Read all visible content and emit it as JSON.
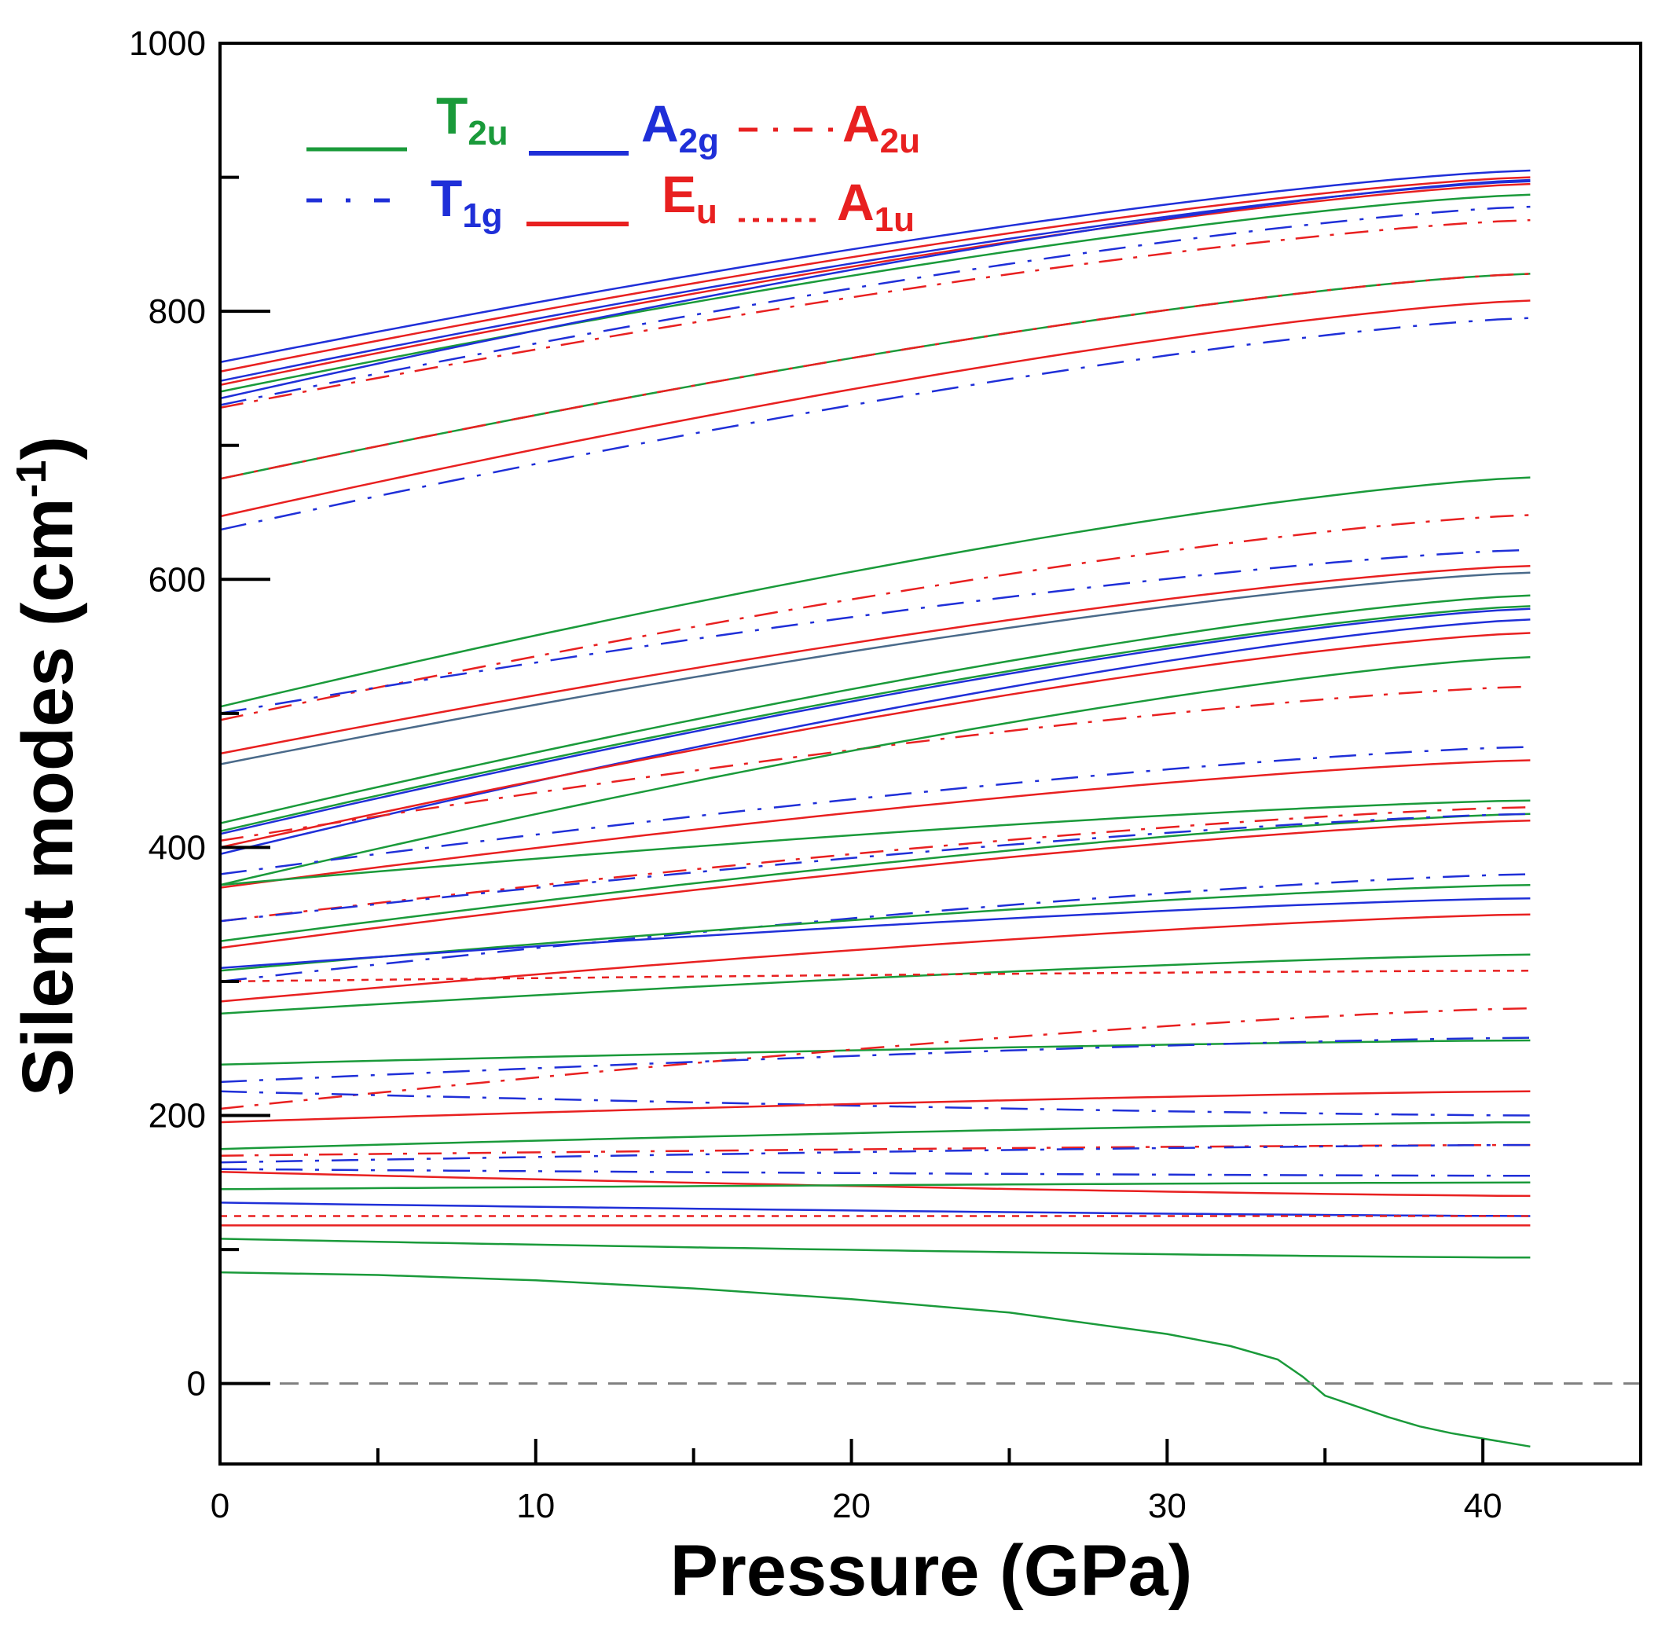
{
  "chart_data": {
    "type": "line",
    "title": "",
    "xlabel": "Pressure (GPa)",
    "ylabel_main": "Silent modes (cm",
    "ylabel_sup": "-1",
    "ylabel_end": ")",
    "xlim": [
      0,
      45
    ],
    "ylim": [
      -60,
      1000
    ],
    "x_ticks": [
      {
        "value": 0,
        "label": "0"
      },
      {
        "value": 10,
        "label": "10"
      },
      {
        "value": 20,
        "label": "20"
      },
      {
        "value": 30,
        "label": "30"
      },
      {
        "value": 40,
        "label": "40"
      }
    ],
    "y_ticks": [
      {
        "value": 0,
        "label": "0"
      },
      {
        "value": 200,
        "label": "200"
      },
      {
        "value": 400,
        "label": "400"
      },
      {
        "value": 600,
        "label": "600"
      },
      {
        "value": 800,
        "label": "800"
      },
      {
        "value": 1000,
        "label": "1000"
      }
    ],
    "zero_line": {
      "y": 0,
      "style": "dashed",
      "color": "#808080"
    },
    "x_range": [
      0,
      41.5
    ],
    "legend": [
      {
        "mode": "T2u",
        "main": "T",
        "sub": "2u",
        "color": "#1a9a3a",
        "style": "solid"
      },
      {
        "mode": "A2g",
        "main": "A",
        "sub": "2g",
        "color": "#1f2fd8",
        "style": "solid"
      },
      {
        "mode": "A2u",
        "main": "A",
        "sub": "2u",
        "color": "#e82020",
        "style": "dashdot"
      },
      {
        "mode": "T1g",
        "main": "T",
        "sub": "1g",
        "color": "#1f2fd8",
        "style": "dashdot"
      },
      {
        "mode": "Eu",
        "main": "E",
        "sub": "u",
        "color": "#e82020",
        "style": "solid"
      },
      {
        "mode": "A1u",
        "main": "A",
        "sub": "1u",
        "color": "#e82020",
        "style": "dotted"
      }
    ],
    "styles": {
      "T2u": {
        "color": "#1a9a3a",
        "dash": "none",
        "width": 2.5
      },
      "A2g": {
        "color": "#1f2fd8",
        "dash": "none",
        "width": 2.5
      },
      "A2u": {
        "color": "#e82020",
        "dash": "30 14 5 14",
        "width": 2.5
      },
      "T1g": {
        "color": "#1f2fd8",
        "dash": "34 16 5 16",
        "width": 2.5
      },
      "Eu": {
        "color": "#e82020",
        "dash": "none",
        "width": 2.5
      },
      "A1u": {
        "color": "#e82020",
        "dash": "9 9",
        "width": 2.5
      },
      "Mix": {
        "color": "#4a6a8a",
        "dash": "none",
        "width": 2.5
      }
    },
    "series": [
      {
        "mode": "A2g",
        "start": 762,
        "end": 905
      },
      {
        "mode": "Eu",
        "start": 755,
        "end": 900
      },
      {
        "mode": "A2g",
        "start": 748,
        "end": 897
      },
      {
        "mode": "Eu",
        "start": 745,
        "end": 895
      },
      {
        "mode": "T2u",
        "start": 740,
        "end": 887
      },
      {
        "mode": "A2g",
        "start": 735,
        "end": 898
      },
      {
        "mode": "A2u",
        "start": 728,
        "end": 868
      },
      {
        "mode": "T1g",
        "start": 730,
        "end": 878
      },
      {
        "mode": "T2u",
        "start": 675,
        "end": 828
      },
      {
        "mode": "A2u",
        "start": 675,
        "end": 828
      },
      {
        "mode": "Eu",
        "start": 647,
        "end": 808
      },
      {
        "mode": "T1g",
        "start": 637,
        "end": 795
      },
      {
        "mode": "T2u",
        "start": 505,
        "end": 676
      },
      {
        "mode": "A2u",
        "start": 495,
        "end": 648
      },
      {
        "mode": "T1g",
        "start": 500,
        "end": 622
      },
      {
        "mode": "Eu",
        "start": 470,
        "end": 610
      },
      {
        "mode": "Mix",
        "start": 462,
        "end": 605
      },
      {
        "mode": "T2u",
        "start": 418,
        "end": 588
      },
      {
        "mode": "T2u",
        "start": 412,
        "end": 580
      },
      {
        "mode": "A2g",
        "start": 410,
        "end": 578
      },
      {
        "mode": "A2g",
        "start": 395,
        "end": 570
      },
      {
        "mode": "Eu",
        "start": 400,
        "end": 560
      },
      {
        "mode": "A2u",
        "start": 405,
        "end": 520
      },
      {
        "mode": "T2u",
        "start": 372,
        "end": 542
      },
      {
        "mode": "T1g",
        "start": 380,
        "end": 475
      },
      {
        "mode": "Eu",
        "start": 370,
        "end": 465
      },
      {
        "mode": "T2u",
        "start": 372,
        "end": 435
      },
      {
        "mode": "A2u",
        "start": 345,
        "end": 430
      },
      {
        "mode": "T2u",
        "start": 330,
        "end": 425
      },
      {
        "mode": "T1g",
        "start": 345,
        "end": 425
      },
      {
        "mode": "Eu",
        "start": 325,
        "end": 420
      },
      {
        "mode": "T1g",
        "start": 300,
        "end": 380
      },
      {
        "mode": "T2u",
        "start": 308,
        "end": 372
      },
      {
        "mode": "A2g",
        "start": 310,
        "end": 362
      },
      {
        "mode": "Eu",
        "start": 285,
        "end": 350
      },
      {
        "mode": "T2u",
        "start": 276,
        "end": 320
      },
      {
        "mode": "A1u",
        "start": 300,
        "end": 308
      },
      {
        "mode": "T2u",
        "start": 238,
        "end": 256
      },
      {
        "mode": "A2u",
        "start": 205,
        "end": 280
      },
      {
        "mode": "T1g",
        "start": 225,
        "end": 258
      },
      {
        "mode": "T1g",
        "start": 218,
        "end": 200
      },
      {
        "mode": "Eu",
        "start": 195,
        "end": 218
      },
      {
        "mode": "T2u",
        "start": 175,
        "end": 195
      },
      {
        "mode": "A2u",
        "start": 170,
        "end": 178
      },
      {
        "mode": "T1g",
        "start": 165,
        "end": 178
      },
      {
        "mode": "T1g",
        "start": 160,
        "end": 155
      },
      {
        "mode": "Eu",
        "start": 158,
        "end": 140
      },
      {
        "mode": "T2u",
        "start": 145,
        "end": 150
      },
      {
        "mode": "A2g",
        "start": 135,
        "end": 125
      },
      {
        "mode": "A1u",
        "start": 125,
        "end": 125
      },
      {
        "mode": "Eu",
        "start": 118,
        "end": 118
      },
      {
        "mode": "T2u",
        "start": 108,
        "end": 94
      }
    ],
    "soft_mode": {
      "mode": "T2u",
      "x": [
        0,
        5,
        10,
        15,
        20,
        25,
        30,
        32,
        33.5,
        34.3,
        35,
        36,
        37,
        38,
        39,
        40,
        41.5
      ],
      "y": [
        83,
        81,
        77,
        71,
        63,
        53,
        37,
        28,
        18,
        5,
        -9,
        -17,
        -25,
        -32,
        -37,
        -41,
        -47
      ]
    }
  }
}
